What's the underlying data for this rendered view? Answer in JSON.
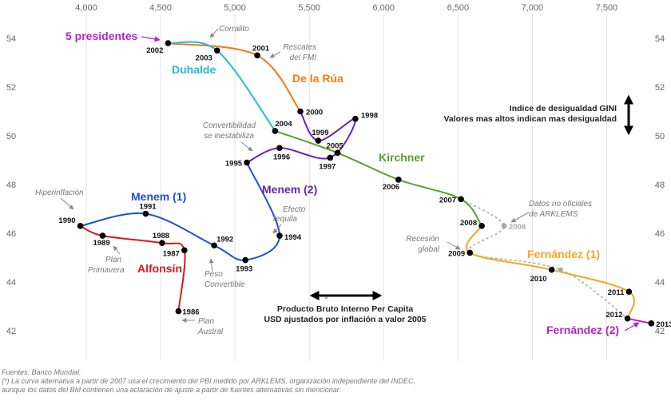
{
  "chart_data": {
    "type": "scatter",
    "title": "",
    "xlabel": "Producto Bruto Interno Per Capita",
    "xlabel_sub": "USD ajustados por inflación a valor 2005",
    "ylabel": "Indice de desigualdad GINI",
    "ylabel_sub": "Valores mas altos indican mas desigualdad",
    "xlim": [
      3600,
      7900
    ],
    "ylim": [
      41.2,
      55.3
    ],
    "x_ticks": [
      "4,000",
      "4,500",
      "5,000",
      "5,500",
      "6,000",
      "6,500",
      "7,000",
      "7,500"
    ],
    "y_ticks": [
      "42",
      "44",
      "46",
      "48",
      "50",
      "52",
      "54"
    ],
    "grid": "vertical",
    "series": [
      {
        "name": "Alfonsín",
        "color": "#d7191c",
        "points": [
          {
            "year": "1986",
            "x": 4620,
            "y": 42.8
          },
          {
            "year": "1987",
            "x": 4660,
            "y": 45.3
          },
          {
            "year": "1988",
            "x": 4510,
            "y": 45.6
          },
          {
            "year": "1989",
            "x": 4110,
            "y": 45.9
          }
        ]
      },
      {
        "name": "Menem (1)",
        "color": "#1f4fd6",
        "points": [
          {
            "year": "1990",
            "x": 3960,
            "y": 46.3
          },
          {
            "year": "1991",
            "x": 4400,
            "y": 46.8
          },
          {
            "year": "1992",
            "x": 4860,
            "y": 45.5
          },
          {
            "year": "1993",
            "x": 5070,
            "y": 44.9
          },
          {
            "year": "1994",
            "x": 5300,
            "y": 45.9
          }
        ]
      },
      {
        "name": "Menem (2)",
        "color": "#6a22b4",
        "points": [
          {
            "year": "1995",
            "x": 5080,
            "y": 48.9
          },
          {
            "year": "1996",
            "x": 5300,
            "y": 49.5
          },
          {
            "year": "1997",
            "x": 5640,
            "y": 49.1
          },
          {
            "year": "1998",
            "x": 5810,
            "y": 50.7
          },
          {
            "year": "1999",
            "x": 5560,
            "y": 49.8
          }
        ]
      },
      {
        "name": "De la Rúa",
        "color": "#f07a1a",
        "points": [
          {
            "year": "2000",
            "x": 5440,
            "y": 51.0
          },
          {
            "year": "2001",
            "x": 5150,
            "y": 53.3
          }
        ]
      },
      {
        "name": "Duhalde",
        "color": "#22bcd8",
        "points": [
          {
            "year": "2002",
            "x": 4550,
            "y": 53.8
          },
          {
            "year": "2003",
            "x": 4880,
            "y": 53.5
          }
        ]
      },
      {
        "name": "Kirchner",
        "color": "#5aa02c",
        "points": [
          {
            "year": "2004",
            "x": 5270,
            "y": 50.2
          },
          {
            "year": "2005",
            "x": 5690,
            "y": 49.3
          },
          {
            "year": "2006",
            "x": 6100,
            "y": 48.2
          },
          {
            "year": "2007",
            "x": 6520,
            "y": 47.4
          }
        ]
      },
      {
        "name": "Fernández (1)",
        "color": "#f5a623",
        "points": [
          {
            "year": "2008",
            "x": 6660,
            "y": 46.3
          },
          {
            "year": "2009",
            "x": 6580,
            "y": 45.2
          },
          {
            "year": "2010",
            "x": 7130,
            "y": 44.5
          },
          {
            "year": "2011",
            "x": 7650,
            "y": 43.6
          }
        ]
      },
      {
        "name": "Fernández (2)",
        "color": "#b524c8",
        "points": [
          {
            "year": "2012",
            "x": 7640,
            "y": 42.5
          },
          {
            "year": "2013",
            "x": 7800,
            "y": 42.3
          }
        ]
      },
      {
        "name": "",
        "color": "#aaaaaa",
        "dashed": true,
        "points": [
          {
            "year": "",
            "x": 6520,
            "y": 47.4
          },
          {
            "year": "2008",
            "x": 6810,
            "y": 46.3
          },
          {
            "year": "",
            "x": 6580,
            "y": 45.2
          },
          {
            "year": "",
            "x": 7190,
            "y": 44.5
          },
          {
            "year": "",
            "x": 7640,
            "y": 42.5
          }
        ]
      }
    ],
    "annotations": [
      {
        "text": "5 presidentes",
        "color": "#b524c8"
      },
      {
        "text": "Corralito"
      },
      {
        "text": "Rescates del FMI"
      },
      {
        "text": "Convertibilidad se inestabiliza"
      },
      {
        "text": "Hiperinflación"
      },
      {
        "text": "Efecto Tequila"
      },
      {
        "text": "Plan Primavera"
      },
      {
        "text": "Peso Convertible"
      },
      {
        "text": "Plan Austral"
      },
      {
        "text": "Datos no oficiales de ARKLEMS"
      },
      {
        "text": "Recesión global"
      }
    ]
  },
  "labels": {
    "five_presidents": "5 presidentes",
    "corralito": "Corralito",
    "rescates_1": "Rescates",
    "rescates_2": "del FMI",
    "convert_1": "Convertibilidad",
    "convert_2": "se inestabiliza",
    "hiper": "Hiperinflación",
    "tequila_1": "Efecto",
    "tequila_2": "Tequila",
    "primavera_1": "Plan",
    "primavera_2": "Primavera",
    "peso_1": "Peso",
    "peso_2": "Convertible",
    "austral_1": "Plan",
    "austral_2": "Austral",
    "arklems_1": "Datos no oficiales",
    "arklems_2": "de ARKLEMS",
    "recesion_1": "Recesión",
    "recesion_2": "global",
    "gini_1": "Indice de desigualdad GINI",
    "gini_2": "Valores mas altos indican mas desigualdad",
    "pbi_1": "Producto Bruto Interno Per Capita",
    "pbi_2": "USD ajustados por inflación a valor 2005",
    "asterisk": "*"
  },
  "footer": {
    "source": "Fuentes: Banco Mundial.",
    "note_1": "(*) La curva alternativa a partir de 2007 usa el crecimiento del PBI medido por ARKLEMS, organización independiente del INDEC,",
    "note_2": "aunque los datos del BM contienen una aclaración de ajuste a partir de fuentes alternativas sin  mencionar."
  },
  "colors": {
    "alfonsin": "#d7191c",
    "menem1": "#1f4fd6",
    "menem2": "#6a22b4",
    "delarua": "#f07a1a",
    "duhalde": "#22bcd8",
    "kirchner": "#5aa02c",
    "fernandez1": "#f5a623",
    "fernandez2": "#b524c8",
    "alternative": "#aaaaaa"
  }
}
